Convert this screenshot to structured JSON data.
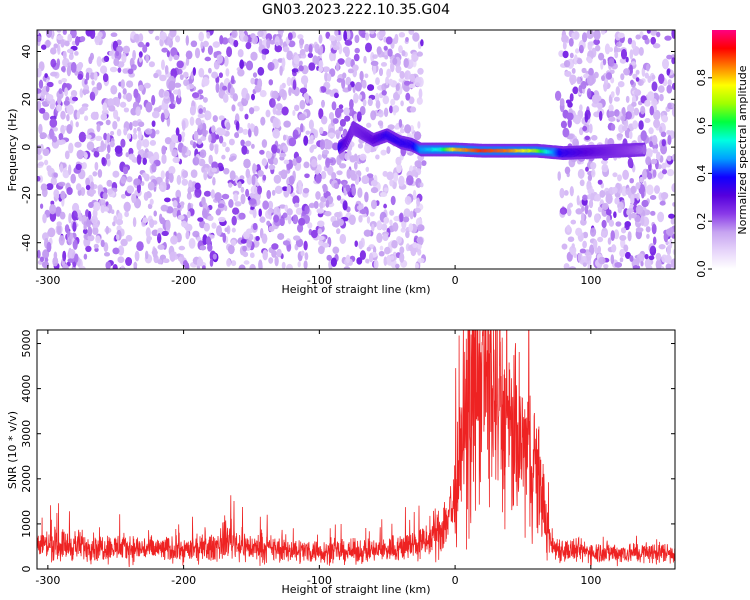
{
  "title": "GN03.2023.222.10.35.G04",
  "chart_data": [
    {
      "type": "heatmap",
      "xlabel": "Height of straight line (km)",
      "ylabel": "Frequency (Hz)",
      "xlim": [
        -308,
        162
      ],
      "ylim": [
        -51,
        49
      ],
      "xticks": [
        -300,
        -200,
        -100,
        0,
        100
      ],
      "yticks": [
        -40,
        -20,
        0,
        20,
        40
      ],
      "colorbar": {
        "label": "Normalized spectral amplitude",
        "range": [
          0.0,
          1.0
        ],
        "ticks": [
          "0.0",
          "0.2",
          "0.4",
          "0.6",
          "0.8"
        ],
        "colormap": [
          "#ffffff",
          "#e6d4fa",
          "#c7a4f1",
          "#8a3ae8",
          "#5500dd",
          "#1000ff",
          "#00a0ff",
          "#00ffe0",
          "#00ff40",
          "#a0ff00",
          "#ffff00",
          "#ff8000",
          "#ff0000",
          "#ff0080"
        ]
      },
      "signal_band": [
        {
          "x": -85,
          "y": 0,
          "amp": 0.35
        },
        {
          "x": -80,
          "y": 2,
          "amp": 0.3
        },
        {
          "x": -75,
          "y": 8,
          "amp": 0.25
        },
        {
          "x": -60,
          "y": 3,
          "amp": 0.3
        },
        {
          "x": -50,
          "y": 5,
          "amp": 0.35
        },
        {
          "x": -40,
          "y": 2,
          "amp": 0.35
        },
        {
          "x": -32,
          "y": 1,
          "amp": 0.35
        },
        {
          "x": -25,
          "y": -1,
          "amp": 0.45
        },
        {
          "x": -10,
          "y": -1,
          "amp": 0.55
        },
        {
          "x": 0,
          "y": -1,
          "amp": 0.8
        },
        {
          "x": 20,
          "y": -1.5,
          "amp": 0.9
        },
        {
          "x": 40,
          "y": -1.5,
          "amp": 0.85
        },
        {
          "x": 60,
          "y": -1.5,
          "amp": 0.7
        },
        {
          "x": 70,
          "y": -2,
          "amp": 0.5
        },
        {
          "x": 80,
          "y": -2.5,
          "amp": 0.35
        },
        {
          "x": 140,
          "y": -1,
          "amp": 0.2
        }
      ],
      "quiet_region_x": [
        -25,
        80
      ]
    },
    {
      "type": "line",
      "xlabel": "Height of straight line (km)",
      "ylabel": "SNR (10 * v/v)",
      "xlim": [
        -308,
        162
      ],
      "ylim": [
        0,
        5300
      ],
      "xticks": [
        -300,
        -200,
        -100,
        0,
        100
      ],
      "yticks": [
        0,
        1000,
        2000,
        3000,
        4000,
        5000
      ],
      "series": [
        {
          "color": "#ee2222",
          "x": [
            -308,
            -280,
            -250,
            -220,
            -200,
            -180,
            -165,
            -160,
            -150,
            -120,
            -100,
            -80,
            -60,
            -40,
            -20,
            -10,
            0,
            5,
            10,
            15,
            20,
            25,
            30,
            35,
            40,
            45,
            50,
            55,
            60,
            65,
            68,
            72,
            80,
            100,
            120,
            140,
            162
          ],
          "y": [
            550,
            520,
            470,
            440,
            420,
            450,
            700,
            550,
            470,
            420,
            390,
            380,
            400,
            480,
            600,
            900,
            1500,
            2600,
            3500,
            4000,
            4300,
            4200,
            3800,
            3300,
            3000,
            2800,
            2700,
            2500,
            2200,
            1500,
            800,
            500,
            420,
            380,
            360,
            360,
            370
          ]
        }
      ]
    }
  ]
}
